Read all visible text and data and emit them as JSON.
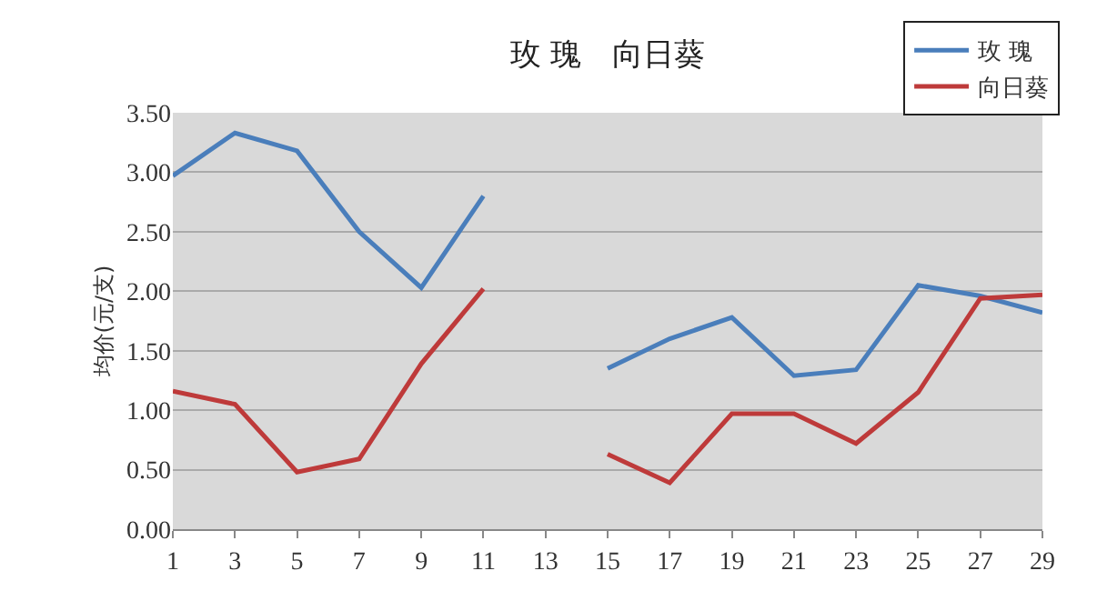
{
  "chart_data": {
    "type": "line",
    "title": "玫 瑰　向日葵",
    "ylabel": "均价(元/支)",
    "x": [
      1,
      3,
      5,
      7,
      9,
      11,
      13,
      15,
      17,
      19,
      21,
      23,
      25,
      27,
      29
    ],
    "series": [
      {
        "name": "玫 瑰",
        "color": "#4a7ebb",
        "values": [
          2.97,
          3.33,
          3.18,
          2.5,
          2.03,
          2.8,
          null,
          1.35,
          1.6,
          1.78,
          1.29,
          1.34,
          2.05,
          1.96,
          1.82
        ]
      },
      {
        "name": "向日葵",
        "color": "#be3a3a",
        "values": [
          1.16,
          1.05,
          0.48,
          0.59,
          1.39,
          2.02,
          null,
          0.63,
          0.39,
          0.97,
          0.97,
          0.72,
          1.15,
          1.94,
          1.97
        ]
      }
    ],
    "xlim": [
      1,
      29
    ],
    "xticks": [
      1,
      3,
      5,
      7,
      9,
      11,
      13,
      15,
      17,
      19,
      21,
      23,
      25,
      27,
      29
    ],
    "ylim": [
      0,
      3.5
    ],
    "yticks": [
      {
        "value": 0,
        "label": "0.00"
      },
      {
        "value": 0.5,
        "label": "0.50"
      },
      {
        "value": 1,
        "label": "1.00"
      },
      {
        "value": 1.5,
        "label": "1.50"
      },
      {
        "value": 2,
        "label": "2.00"
      },
      {
        "value": 2.5,
        "label": "2.50"
      },
      {
        "value": 3,
        "label": "3.00"
      },
      {
        "value": 3.5,
        "label": "3.50"
      }
    ],
    "grid": "y",
    "legend": "top right",
    "marker": "none",
    "line_style": "solid"
  }
}
